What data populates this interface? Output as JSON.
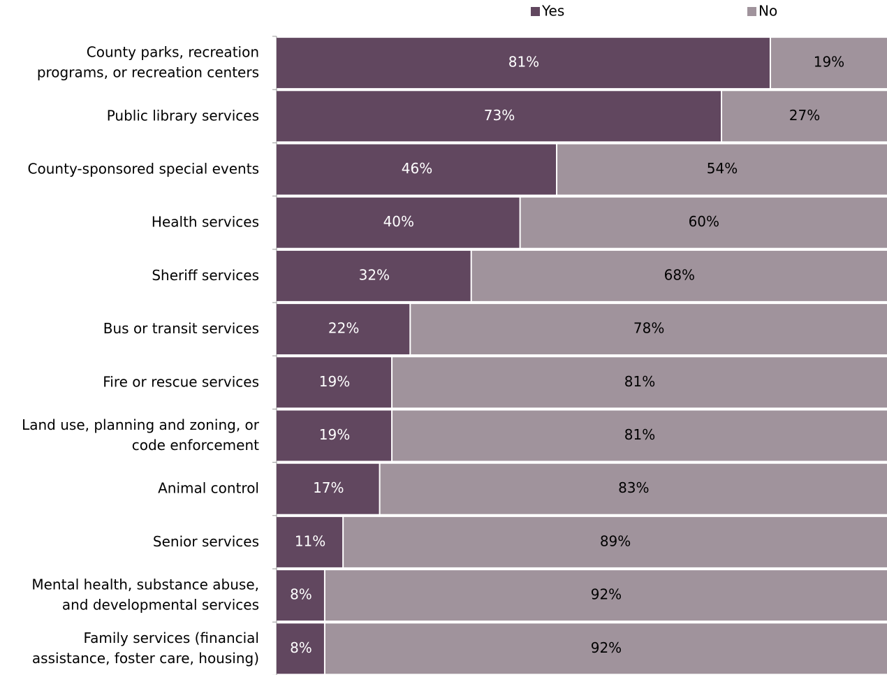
{
  "chart_data": {
    "type": "stacked-barh",
    "categories": [
      [
        "County parks, recreation",
        "programs, or recreation centers"
      ],
      [
        "Public library services"
      ],
      [
        "County-sponsored special events"
      ],
      [
        "Health services"
      ],
      [
        "Sheriff services"
      ],
      [
        "Bus or transit services"
      ],
      [
        "Fire or rescue services"
      ],
      [
        "Land use, planning and zoning, or",
        "code enforcement"
      ],
      [
        "Animal control"
      ],
      [
        "Senior services"
      ],
      [
        "Mental health, substance abuse,",
        "and developmental services"
      ],
      [
        "Family services (financial",
        "assistance, foster care, housing)"
      ]
    ],
    "series": [
      {
        "name": "Yes",
        "color": "#61475f",
        "label_color": "#ffffff",
        "values": [
          81,
          73,
          46,
          40,
          32,
          22,
          19,
          19,
          17,
          11,
          8,
          8
        ],
        "value_labels": [
          "81%",
          "73%",
          "46%",
          "40%",
          "32%",
          "22%",
          "19%",
          "19%",
          "17%",
          "11%",
          "8%",
          "8%"
        ]
      },
      {
        "name": "No",
        "color": "#a0939c",
        "label_color": "#000000",
        "values": [
          19,
          27,
          54,
          60,
          68,
          78,
          81,
          81,
          83,
          89,
          92,
          92
        ],
        "value_labels": [
          "19%",
          "27%",
          "54%",
          "60%",
          "68%",
          "78%",
          "81%",
          "81%",
          "83%",
          "89%",
          "92%",
          "92%"
        ]
      }
    ],
    "xlim": [
      0,
      100
    ],
    "legend": "top"
  }
}
